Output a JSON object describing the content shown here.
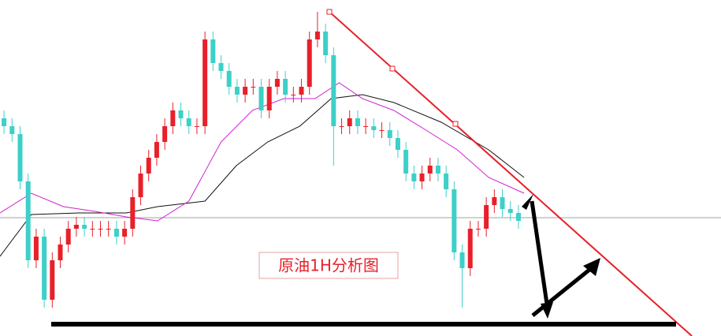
{
  "chart_data": {
    "type": "candlestick",
    "title": "原油1H分析图",
    "xlim": [
      -0.5,
      89.2
    ],
    "ylim": [
      0,
      426
    ],
    "up_color": "#e8202a",
    "down_color": "#3cd0c8",
    "open": [
      276,
      266,
      256,
      196,
      96,
      126,
      46,
      96,
      116,
      136,
      141,
      136,
      136,
      136,
      136,
      126,
      136,
      176,
      206,
      226,
      246,
      266,
      286,
      276,
      266,
      266,
      376,
      346,
      336,
      316,
      306,
      316,
      316,
      286,
      316,
      326,
      306,
      306,
      316,
      376,
      386,
      356,
      266,
      266,
      276,
      266,
      266,
      261,
      261,
      251,
      236,
      206,
      196,
      206,
      216,
      206,
      186,
      106,
      86,
      136,
      136,
      166,
      176,
      161,
      156
    ],
    "high": [
      286,
      276,
      266,
      206,
      136,
      136,
      106,
      126,
      146,
      151,
      151,
      146,
      146,
      146,
      146,
      146,
      186,
      216,
      236,
      256,
      276,
      296,
      296,
      286,
      276,
      386,
      386,
      356,
      346,
      326,
      326,
      326,
      326,
      326,
      336,
      336,
      316,
      326,
      386,
      411,
      396,
      366,
      276,
      286,
      286,
      276,
      276,
      271,
      271,
      261,
      246,
      216,
      216,
      226,
      226,
      216,
      196,
      116,
      146,
      146,
      176,
      186,
      186,
      171,
      166
    ],
    "low": [
      256,
      246,
      186,
      86,
      86,
      36,
      36,
      86,
      106,
      126,
      126,
      126,
      126,
      126,
      116,
      116,
      126,
      166,
      196,
      216,
      236,
      256,
      266,
      256,
      256,
      256,
      336,
      326,
      306,
      296,
      296,
      306,
      276,
      276,
      306,
      296,
      296,
      296,
      306,
      366,
      346,
      216,
      256,
      256,
      256,
      256,
      251,
      251,
      241,
      226,
      196,
      186,
      186,
      196,
      196,
      176,
      96,
      36,
      76,
      126,
      126,
      156,
      151,
      146,
      136
    ],
    "close": [
      266,
      256,
      196,
      96,
      126,
      46,
      96,
      116,
      136,
      141,
      136,
      136,
      136,
      136,
      126,
      136,
      176,
      206,
      226,
      246,
      266,
      286,
      276,
      266,
      266,
      376,
      346,
      336,
      316,
      306,
      316,
      316,
      286,
      316,
      326,
      306,
      306,
      316,
      376,
      386,
      356,
      266,
      266,
      276,
      266,
      266,
      261,
      261,
      251,
      236,
      206,
      196,
      206,
      216,
      206,
      186,
      106,
      86,
      136,
      136,
      166,
      176,
      161,
      156,
      146
    ],
    "series": [
      {
        "color": "#111111",
        "x": [
          -0.5,
          3.4,
          9.3,
          15.2,
          19.1,
          25,
          28.9,
          32.8,
          36.8,
          40.7,
          44.6,
          48.5,
          54.4,
          60.3,
          64.7
        ],
        "values": [
          101,
          154,
          156,
          156,
          164,
          171,
          216,
          246,
          266,
          301,
          306,
          296,
          271,
          236,
          201
        ]
      },
      {
        "color": "#d020d0",
        "x": [
          -0.5,
          3.4,
          7.4,
          11.3,
          15.2,
          19.1,
          23,
          27,
          30.9,
          34.8,
          38.7,
          41.7,
          44.6,
          48.5,
          52.5,
          56.4,
          60.3,
          64.7
        ],
        "values": [
          156,
          181,
          164,
          158,
          151,
          146,
          171,
          246,
          286,
          301,
          301,
          321,
          301,
          286,
          261,
          236,
          201,
          181
        ]
      }
    ]
  }
}
